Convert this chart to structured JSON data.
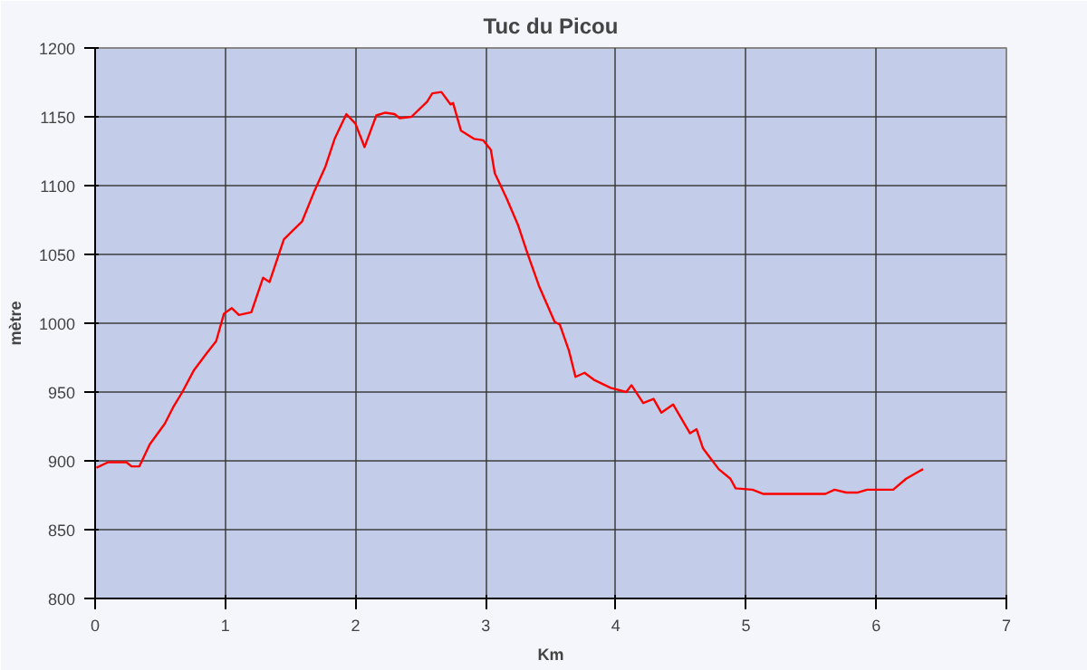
{
  "chart_data": {
    "type": "line",
    "title": "Tuc du Picou",
    "xlabel": "Km",
    "ylabel": "mètre",
    "xlim": [
      0,
      7
    ],
    "xticks": [
      0,
      1,
      2,
      3,
      4,
      5,
      6,
      7
    ],
    "ylim": [
      800,
      1200
    ],
    "yticks": [
      800,
      850,
      900,
      950,
      1000,
      1050,
      1100,
      1150,
      1200
    ],
    "grid": true,
    "series": [
      {
        "color": "#ff0000",
        "x": [
          0.01,
          0.1,
          0.24,
          0.28,
          0.34,
          0.42,
          0.535,
          0.6,
          0.67,
          0.76,
          0.855,
          0.93,
          0.99,
          1.05,
          1.105,
          1.2,
          1.29,
          1.34,
          1.45,
          1.59,
          1.68,
          1.77,
          1.84,
          1.93,
          2.0,
          2.07,
          2.16,
          2.23,
          2.3,
          2.34,
          2.43,
          2.55,
          2.59,
          2.66,
          2.73,
          2.75,
          2.81,
          2.91,
          2.98,
          3.04,
          3.07,
          3.16,
          3.25,
          3.32,
          3.41,
          3.53,
          3.57,
          3.64,
          3.69,
          3.76,
          3.83,
          3.96,
          4.08,
          4.12,
          4.21,
          4.29,
          4.35,
          4.44,
          4.57,
          4.62,
          4.67,
          4.79,
          4.88,
          4.92,
          5.05,
          5.13,
          5.61,
          5.68,
          5.77,
          5.86,
          5.93,
          6.13,
          6.23,
          6.36
        ],
        "values": [
          895,
          899,
          899,
          896,
          896,
          912,
          927,
          939,
          950,
          966,
          978,
          987,
          1007,
          1011,
          1006,
          1008,
          1033,
          1030,
          1061,
          1074,
          1095,
          1114,
          1134,
          1152,
          1145,
          1128,
          1151,
          1153,
          1152,
          1149,
          1150,
          1161,
          1167,
          1168,
          1159,
          1160,
          1140,
          1134,
          1133,
          1126,
          1109,
          1091,
          1071,
          1051,
          1027,
          1001,
          999,
          980,
          961,
          964,
          959,
          953,
          950,
          955,
          942,
          945,
          935,
          941,
          920,
          923,
          909,
          894,
          887,
          880,
          879,
          876,
          876,
          879,
          877,
          877,
          879,
          879,
          887,
          894
        ]
      }
    ]
  }
}
